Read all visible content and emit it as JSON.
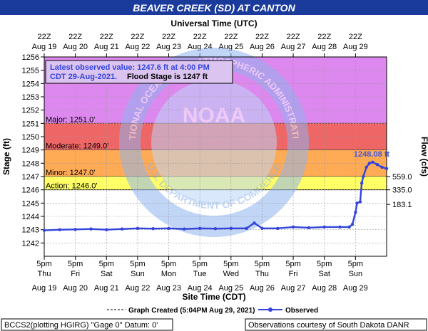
{
  "title": "BEAVER CREEK (SD) AT CANTON",
  "top_axis": {
    "label": "Universal Time (UTC)",
    "ticks": [
      {
        "hour": "22Z",
        "date": "Aug 19"
      },
      {
        "hour": "22Z",
        "date": "Aug 20"
      },
      {
        "hour": "22Z",
        "date": "Aug 21"
      },
      {
        "hour": "22Z",
        "date": "Aug 22"
      },
      {
        "hour": "22Z",
        "date": "Aug 23"
      },
      {
        "hour": "22Z",
        "date": "Aug 24"
      },
      {
        "hour": "22Z",
        "date": "Aug 25"
      },
      {
        "hour": "22Z",
        "date": "Aug 26"
      },
      {
        "hour": "22Z",
        "date": "Aug 27"
      },
      {
        "hour": "22Z",
        "date": "Aug 28"
      },
      {
        "hour": "22Z",
        "date": "Aug 29"
      }
    ]
  },
  "bottom_axis": {
    "label": "Site Time (CDT)",
    "ticks": [
      {
        "time": "5pm",
        "day": "Thu",
        "date": "Aug 19"
      },
      {
        "time": "5pm",
        "day": "Fri",
        "date": "Aug 20"
      },
      {
        "time": "5pm",
        "day": "Sat",
        "date": "Aug 21"
      },
      {
        "time": "5pm",
        "day": "Sun",
        "date": "Aug 22"
      },
      {
        "time": "5pm",
        "day": "Mon",
        "date": "Aug 23"
      },
      {
        "time": "5pm",
        "day": "Tue",
        "date": "Aug 24"
      },
      {
        "time": "5pm",
        "day": "Wed",
        "date": "Aug 25"
      },
      {
        "time": "5pm",
        "day": "Thu",
        "date": "Aug 26"
      },
      {
        "time": "5pm",
        "day": "Fri",
        "date": "Aug 27"
      },
      {
        "time": "5pm",
        "day": "Sat",
        "date": "Aug 28"
      },
      {
        "time": "5pm",
        "day": "Sun",
        "date": "Aug 29"
      }
    ]
  },
  "y_axis": {
    "label": "Stage (ft)",
    "ticks": [
      "1242",
      "1243",
      "1244",
      "1245",
      "1246",
      "1247",
      "1248",
      "1249",
      "1250",
      "1251",
      "1252",
      "1253",
      "1254",
      "1255",
      "1256"
    ]
  },
  "right_axis": {
    "label": "Flow (cfs)",
    "ticks": [
      {
        "stage": 1247.0,
        "label": "559.0"
      },
      {
        "stage": 1246.0,
        "label": "335.0"
      },
      {
        "stage": 1244.9,
        "label": "183.1"
      }
    ]
  },
  "flood_categories": [
    {
      "name": "Major: 1251.0'",
      "lower": 1251,
      "upper": 1256,
      "color": "#dd88ee"
    },
    {
      "name": "Moderate: 1249.0'",
      "lower": 1249,
      "upper": 1251,
      "color": "#ee6666"
    },
    {
      "name": "Minor: 1247.0'",
      "lower": 1247,
      "upper": 1249,
      "color": "#ffaa55"
    },
    {
      "name": "Action: 1246.0'",
      "lower": 1246,
      "upper": 1247,
      "color": "#ffff66"
    }
  ],
  "latest_box": {
    "line1": "Latest observed value: 1247.6 ft at 4:00 PM",
    "line2_date": "CDT 29-Aug-2021.",
    "line2_flood": "Flood Stage is 1247 ft"
  },
  "peak_label": "1248.08 ft",
  "legend": {
    "graph_created": "Graph Created (5:04PM Aug 29, 2021)",
    "observed": "Observed"
  },
  "footer": {
    "left": "BCCS2(plotting HGIRG) \"Gage 0\" Datum: 0'",
    "right": "Observations courtesy of South Dakota DANR"
  },
  "watermark": {
    "center": "NOAA",
    "ring_top": "NATIONAL OCEANIC AND ATMOSPHERIC ADMINISTRATION",
    "ring_bottom": "U.S. DEPARTMENT OF COMMERCE"
  },
  "colors": {
    "title_bar": "#1a3a9c",
    "observed": "#3344dd",
    "peak_label": "#4455dd",
    "plot_bg": "#ffffff",
    "watermark": "#8fb4f0"
  },
  "chart_data": {
    "type": "line",
    "title": "BEAVER CREEK (SD) AT CANTON",
    "xlabel": "Site Time (CDT)",
    "ylabel": "Stage (ft)",
    "ylim": [
      1241,
      1256
    ],
    "xlim": [
      0,
      11
    ],
    "x_unit": "days after 5pm Thu Aug 19 (CDT)",
    "series": [
      {
        "name": "Observed",
        "x": [
          0,
          0.5,
          1,
          1.5,
          2,
          2.5,
          3,
          3.5,
          4,
          4.5,
          5,
          5.5,
          6,
          6.5,
          6.75,
          7,
          7.5,
          8,
          8.5,
          9,
          9.5,
          9.8,
          9.9,
          10.0,
          10.05,
          10.15,
          10.2,
          10.25,
          10.35,
          10.45,
          10.55,
          10.7,
          10.85,
          11.0
        ],
        "y": [
          1242.95,
          1243.0,
          1243.02,
          1243.05,
          1243.0,
          1243.05,
          1243.1,
          1243.08,
          1243.1,
          1243.05,
          1243.1,
          1243.08,
          1243.1,
          1243.1,
          1243.5,
          1243.1,
          1243.1,
          1243.2,
          1243.15,
          1243.2,
          1243.2,
          1243.2,
          1243.4,
          1244.3,
          1245.0,
          1245.1,
          1246.5,
          1247.0,
          1247.7,
          1248.0,
          1248.08,
          1247.9,
          1247.7,
          1247.6
        ]
      }
    ]
  }
}
